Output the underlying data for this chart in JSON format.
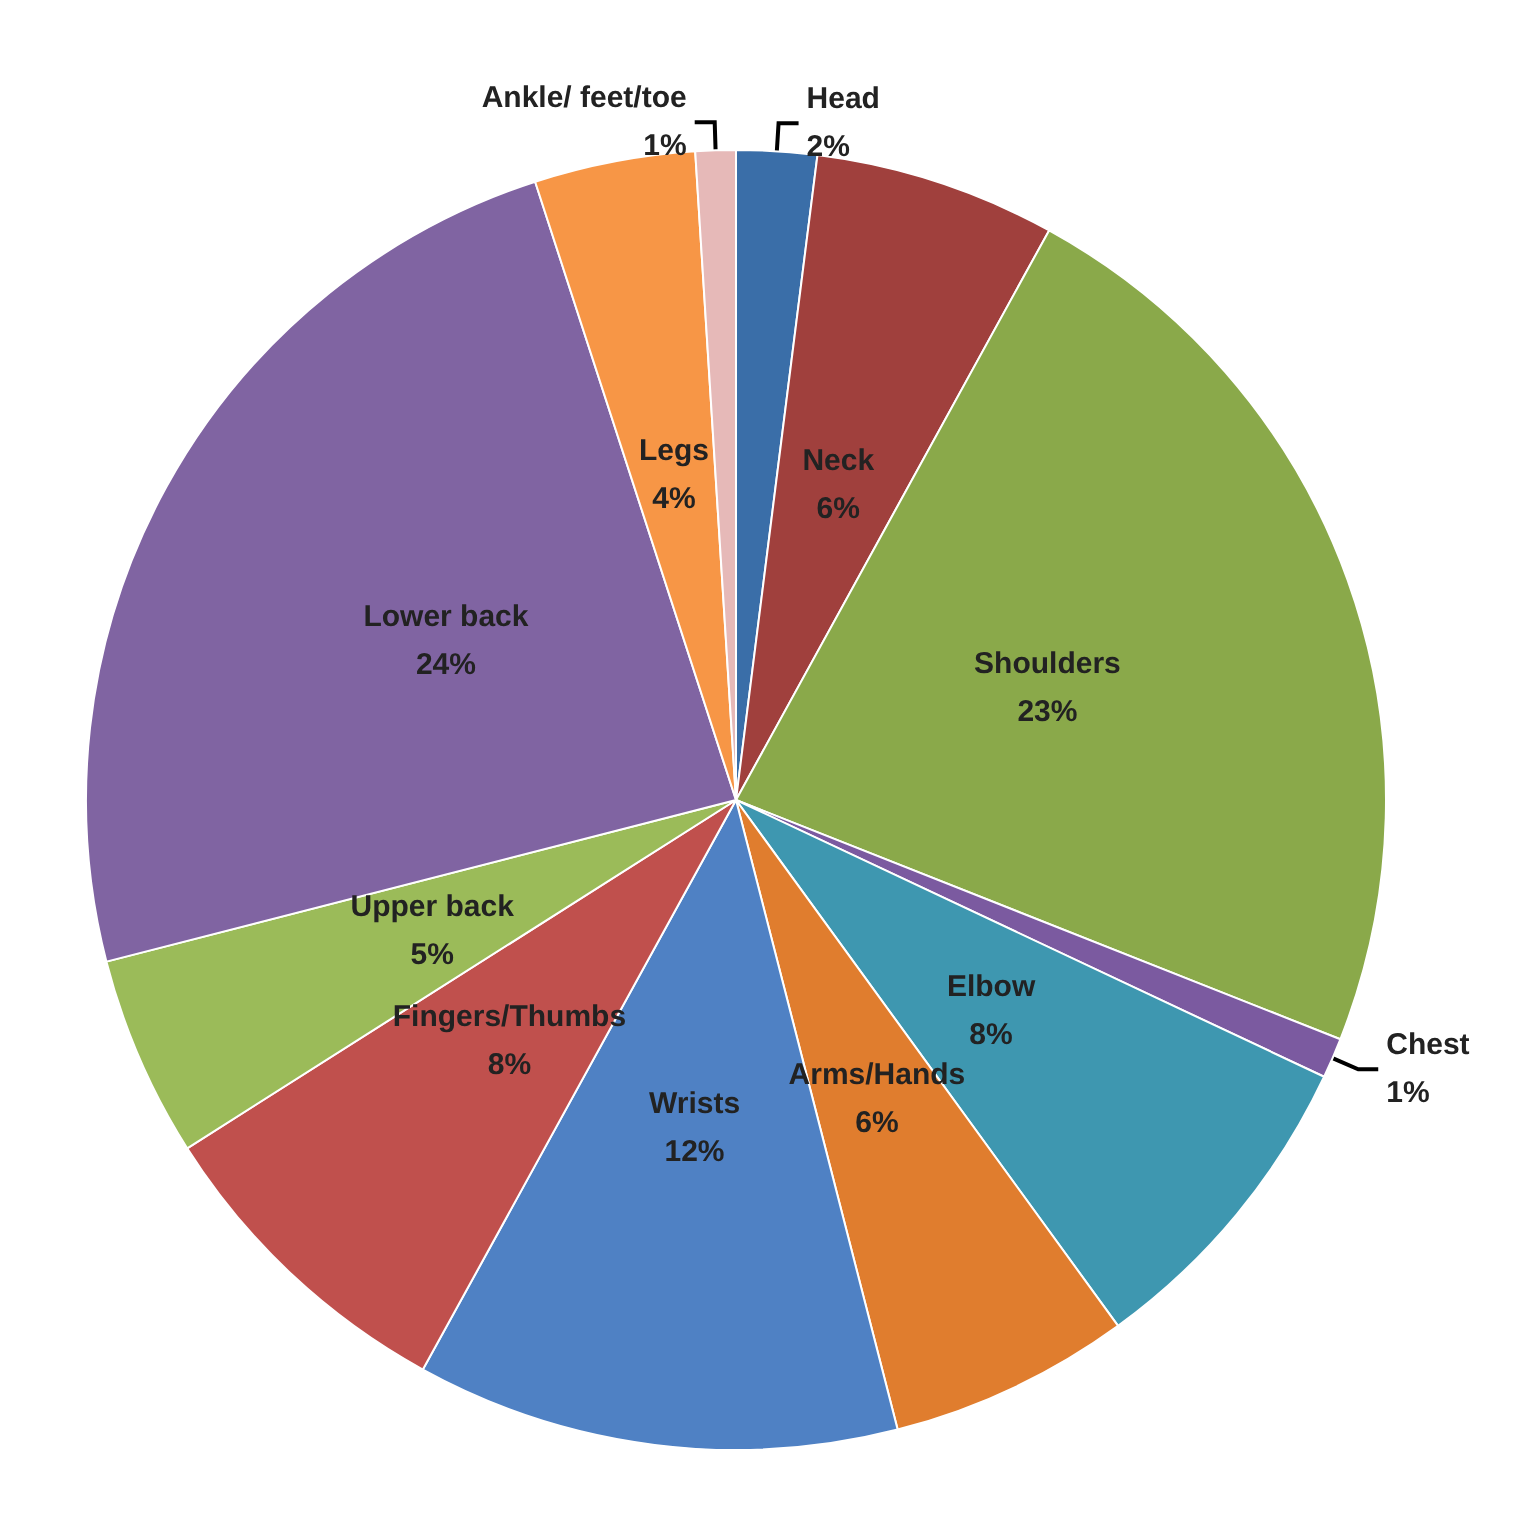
{
  "chart_data": {
    "type": "pie",
    "categories": [
      "Head",
      "Neck",
      "Shoulders",
      "Chest",
      "Elbow",
      "Arms/Hands",
      "Wrists",
      "Fingers/Thumbs",
      "Upper back",
      "Lower back",
      "Legs",
      "Ankle/ feet/toe"
    ],
    "values": [
      2,
      6,
      23,
      1,
      8,
      6,
      12,
      8,
      5,
      24,
      4,
      1
    ],
    "value_labels": [
      "2%",
      "6%",
      "23%",
      "1%",
      "8%",
      "6%",
      "12%",
      "8%",
      "5%",
      "24%",
      "4%",
      "1%"
    ],
    "colors": [
      "#3a6ea8",
      "#a0403d",
      "#8aa94a",
      "#7b5aa0",
      "#3e97b0",
      "#e07d2e",
      "#4f81c4",
      "#c0504d",
      "#9bbb59",
      "#8064a2",
      "#f79646",
      "#e6b9b8"
    ],
    "legend": false
  }
}
